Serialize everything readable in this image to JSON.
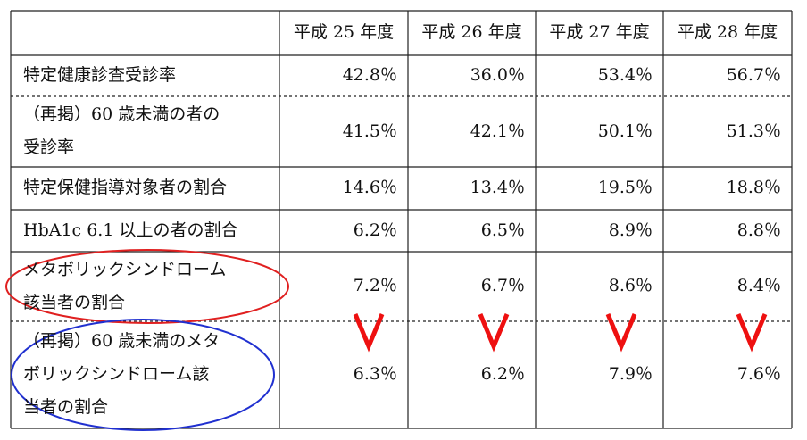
{
  "table": {
    "columns": [
      "平成 25 年度",
      "平成 26 年度",
      "平成 27 年度",
      "平成 28 年度"
    ],
    "rows": [
      {
        "label": [
          "特定健康診査受診率"
        ],
        "values": [
          "42.8％",
          "36.0％",
          "53.4％",
          "56.7％"
        ]
      },
      {
        "label": [
          "（再掲）60 歳未満の者の",
          "受診率"
        ],
        "values": [
          "41.5％",
          "42.1％",
          "50.1％",
          "51.3％"
        ]
      },
      {
        "label": [
          "特定保健指導対象者の割合"
        ],
        "values": [
          "14.6％",
          "13.4％",
          "19.5％",
          "18.8％"
        ]
      },
      {
        "label": [
          "HbA1c 6.1 以上の者の割合"
        ],
        "values": [
          "6.2％",
          "6.5％",
          "8.9％",
          "8.8％"
        ]
      },
      {
        "label": [
          "メタボリックシンドローム",
          "該当者の割合"
        ],
        "values": [
          "7.2％",
          "6.7％",
          "8.6％",
          "8.4％"
        ]
      },
      {
        "label": [
          "（再掲）60 歳未満のメタ",
          "ボリックシンドローム該",
          "当者の割合"
        ],
        "values": [
          "6.3％",
          "6.2％",
          "7.9％",
          "7.6％"
        ]
      }
    ]
  }
}
